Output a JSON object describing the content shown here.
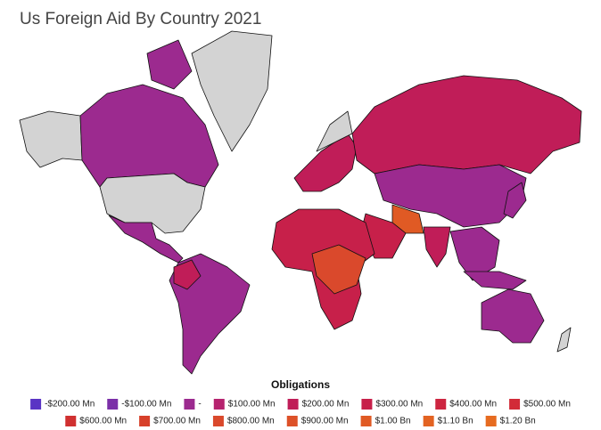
{
  "title": "Us Foreign Aid By Country 2021",
  "legend": {
    "title": "Obligations",
    "items": [
      {
        "label": "-$200.00 Mn",
        "color": "#5a34c4"
      },
      {
        "label": "-$100.00 Mn",
        "color": "#7b2fa8"
      },
      {
        "label": "-",
        "color": "#9c2a8f"
      },
      {
        "label": "$100.00 Mn",
        "color": "#b6236f"
      },
      {
        "label": "$200.00 Mn",
        "color": "#c01d58"
      },
      {
        "label": "$300.00 Mn",
        "color": "#c7204a"
      },
      {
        "label": "$400.00 Mn",
        "color": "#cd2540"
      },
      {
        "label": "$500.00 Mn",
        "color": "#d22b38"
      },
      {
        "label": "$600.00 Mn",
        "color": "#d03030"
      },
      {
        "label": "$700.00 Mn",
        "color": "#d7402a"
      },
      {
        "label": "$800.00 Mn",
        "color": "#da492c"
      },
      {
        "label": "$900.00 Mn",
        "color": "#dd5128"
      },
      {
        "label": "$1.00 Bn",
        "color": "#e05a24"
      },
      {
        "label": "$1.10 Bn",
        "color": "#e36322"
      },
      {
        "label": "$1.20 Bn",
        "color": "#e66b20"
      }
    ]
  }
}
